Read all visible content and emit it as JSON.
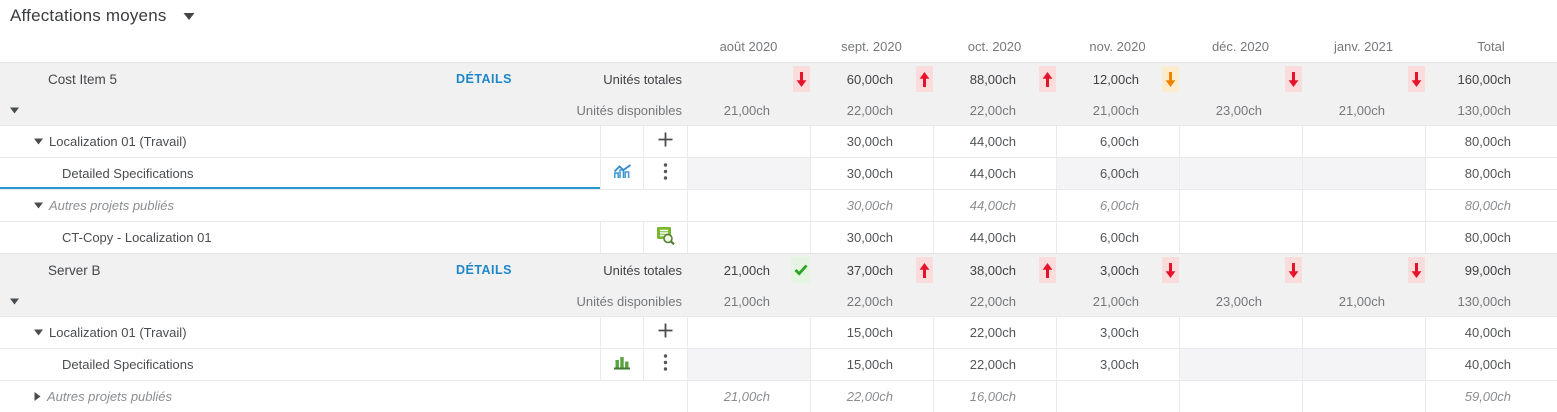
{
  "title": {
    "label": "Affectations moyens"
  },
  "columns": [
    "août 2020",
    "sept. 2020",
    "oct. 2020",
    "nov. 2020",
    "déc. 2020",
    "janv. 2021",
    "Total"
  ],
  "labels": {
    "details": "DÉTAILS",
    "total_units": "Unités totales",
    "available_units": "Unités disponibles"
  },
  "groups": [
    {
      "name": "Cost Item 5",
      "total_units": {
        "cells": [
          {
            "value": "",
            "status": "arrow-down-red"
          },
          {
            "value": "60,00ch",
            "status": "arrow-up-red"
          },
          {
            "value": "88,00ch",
            "status": "arrow-up-red"
          },
          {
            "value": "12,00ch",
            "status": "arrow-down-orange"
          },
          {
            "value": "",
            "status": "arrow-down-red"
          },
          {
            "value": "",
            "status": "arrow-down-red"
          }
        ],
        "total": "160,00ch"
      },
      "available_units": {
        "values": [
          "21,00ch",
          "22,00ch",
          "22,00ch",
          "21,00ch",
          "23,00ch",
          "21,00ch"
        ],
        "total": "130,00ch"
      },
      "rows": [
        {
          "label": "Localization 01 (Travail)",
          "indent": 1,
          "expander": "down",
          "icon_right": "add",
          "values": [
            "",
            "30,00ch",
            "44,00ch",
            "6,00ch",
            "",
            ""
          ],
          "total": "80,00ch"
        },
        {
          "label": "Detailed Specifications",
          "indent": 2,
          "icon_left": "chart-blue",
          "icon_right": "kebab",
          "selected": true,
          "muted": [
            0,
            3,
            4,
            5
          ],
          "values": [
            "",
            "30,00ch",
            "44,00ch",
            "6,00ch",
            "",
            ""
          ],
          "total": "80,00ch"
        },
        {
          "label": "Autres projets publiés",
          "indent": 1,
          "expander": "down",
          "italic": true,
          "merged": true,
          "values": [
            "",
            "30,00ch",
            "44,00ch",
            "6,00ch",
            "",
            ""
          ],
          "total": "80,00ch"
        },
        {
          "label": "CT-Copy - Localization 01",
          "indent": 2,
          "icon_right": "published",
          "values": [
            "",
            "30,00ch",
            "44,00ch",
            "6,00ch",
            "",
            ""
          ],
          "total": "80,00ch"
        }
      ]
    },
    {
      "name": "Server B",
      "total_units": {
        "cells": [
          {
            "value": "21,00ch",
            "status": "check-green"
          },
          {
            "value": "37,00ch",
            "status": "arrow-up-red"
          },
          {
            "value": "38,00ch",
            "status": "arrow-up-red"
          },
          {
            "value": "3,00ch",
            "status": "arrow-down-red"
          },
          {
            "value": "",
            "status": "arrow-down-red"
          },
          {
            "value": "",
            "status": "arrow-down-red"
          }
        ],
        "total": "99,00ch"
      },
      "available_units": {
        "values": [
          "21,00ch",
          "22,00ch",
          "22,00ch",
          "21,00ch",
          "23,00ch",
          "21,00ch"
        ],
        "total": "130,00ch"
      },
      "rows": [
        {
          "label": "Localization 01 (Travail)",
          "indent": 1,
          "expander": "down",
          "icon_right": "add",
          "values": [
            "",
            "15,00ch",
            "22,00ch",
            "3,00ch",
            "",
            ""
          ],
          "total": "40,00ch"
        },
        {
          "label": "Detailed Specifications",
          "indent": 2,
          "icon_left": "chart-green",
          "icon_right": "kebab",
          "muted": [
            0,
            4,
            5
          ],
          "values": [
            "",
            "15,00ch",
            "22,00ch",
            "3,00ch",
            "",
            ""
          ],
          "total": "40,00ch"
        },
        {
          "label": "Autres projets publiés",
          "indent": 1,
          "expander": "right",
          "italic": true,
          "merged": true,
          "values": [
            "21,00ch",
            "22,00ch",
            "16,00ch",
            "",
            "",
            ""
          ],
          "total": "59,00ch"
        }
      ]
    }
  ]
}
